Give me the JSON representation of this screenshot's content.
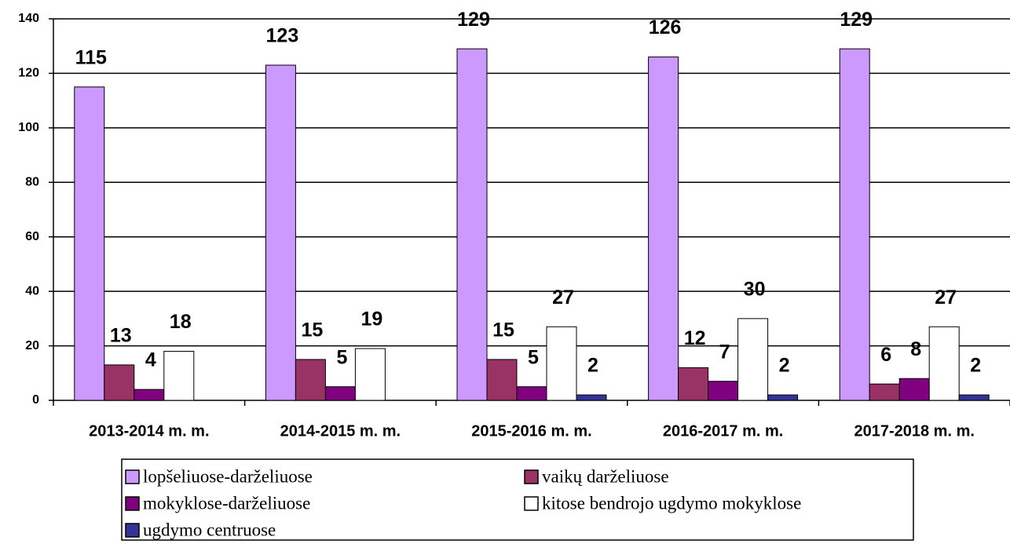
{
  "chart_data": {
    "type": "bar",
    "categories": [
      "2013-2014 m. m.",
      "2014-2015 m. m.",
      "2015-2016 m. m.",
      "2016-2017 m. m.",
      "2017-2018 m. m."
    ],
    "series": [
      {
        "name": "lopšeliuose-darželiuose",
        "color": "#cc99ff",
        "values": [
          115,
          123,
          129,
          126,
          129
        ]
      },
      {
        "name": "vaikų darželiuose",
        "color": "#993366",
        "values": [
          13,
          15,
          15,
          12,
          6
        ]
      },
      {
        "name": "mokyklose-darželiuose",
        "color": "#800080",
        "values": [
          4,
          5,
          5,
          7,
          8
        ]
      },
      {
        "name": "kitose bendrojo ugdymo mokyklose",
        "color": "#ffffff",
        "values": [
          18,
          19,
          27,
          30,
          27
        ]
      },
      {
        "name": "ugdymo centruose",
        "color": "#333399",
        "values": [
          null,
          null,
          2,
          2,
          2
        ]
      }
    ],
    "ylim": [
      0,
      140
    ],
    "yticks": [
      0,
      20,
      40,
      60,
      80,
      100,
      120,
      140
    ],
    "grid": true,
    "legend": "bottom"
  }
}
